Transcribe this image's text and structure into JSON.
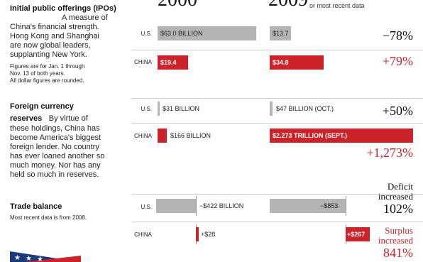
{
  "years": {
    "y2000": "2000",
    "y2009": "2009",
    "y2009_note": "or most recent data"
  },
  "sections": {
    "ipo": {
      "title_bold": "Initial public offerings (IPOs)",
      "desc_1": "A measure of",
      "desc_2": "China's financial strength.",
      "desc_3": "Hong Kong and Shanghai",
      "desc_4": "are now global leaders,",
      "desc_5": "supplanting New York.",
      "note_1": "Figures are for Jan. 1 through",
      "note_2": "Nov. 13 of both years.",
      "note_3": "All dollar figures are rounded."
    },
    "reserves": {
      "title_1": "Foreign currency",
      "title_2": "reserves",
      "desc_0": "By virtue of",
      "desc_1": "these holdings, China has",
      "desc_2": "become America's biggest",
      "desc_3": "foreign lender. No country",
      "desc_4": "has ever loaned another so",
      "desc_5": "much money. Nor has any",
      "desc_6": "held so much in reserves."
    },
    "trade": {
      "title": "Trade balance",
      "note": "Most recent data is from 2008."
    }
  },
  "chart_data": {
    "type": "bar",
    "series": [
      {
        "metric": "Initial public offerings",
        "country": "U.S.",
        "label_2000": "$63.0 BILLION",
        "value_2000": 63.0,
        "label_2009": "$13.7",
        "value_2009": 13.7,
        "change": "−78%"
      },
      {
        "metric": "Initial public offerings",
        "country": "CHINA",
        "label_2000": "$19.4",
        "value_2000": 19.4,
        "label_2009": "$34.8",
        "value_2009": 34.8,
        "change": "+79%"
      },
      {
        "metric": "Foreign currency reserves",
        "country": "U.S.",
        "label_2000": "$31 BILLION",
        "value_2000": 31,
        "label_2009": "$47 BILLION (OCT.)",
        "value_2009": 47,
        "change": "+50%"
      },
      {
        "metric": "Foreign currency reserves",
        "country": "CHINA",
        "label_2000": "$166 BILLION",
        "value_2000": 166,
        "label_2009": "$2.273 TRILLION (SEPT.)",
        "value_2009": 2273,
        "change": "+1,273%"
      },
      {
        "metric": "Trade balance",
        "country": "U.S.",
        "label_2000": "−$422 BILLION",
        "value_2000": -422,
        "label_2009": "−$853",
        "value_2009": -853,
        "change_note_1": "Deficit",
        "change_note_2": "increased",
        "change": "102%"
      },
      {
        "metric": "Trade balance",
        "country": "CHINA",
        "label_2000": "+$28",
        "value_2000": 28,
        "label_2009": "+$267",
        "value_2009": 267,
        "change_note_1": "Surplus",
        "change_note_2": "increased",
        "change": "841%"
      }
    ]
  },
  "colors": {
    "us_bar": "#b4b4b4",
    "china_bar": "#cc2229"
  }
}
